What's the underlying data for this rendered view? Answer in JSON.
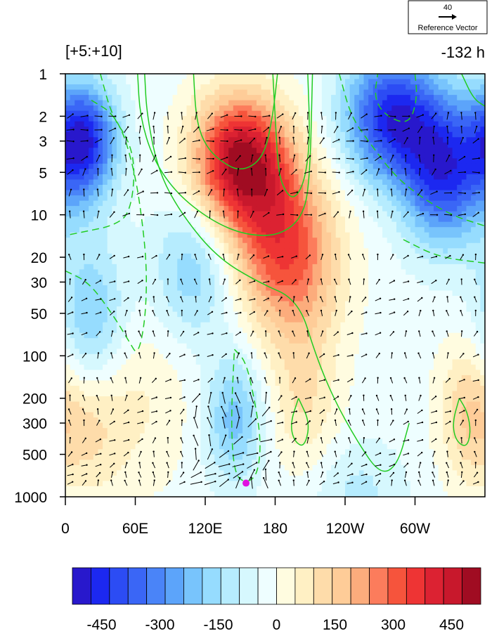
{
  "chart_data": {
    "type": "heatmap",
    "title_left": "[+5:+10]",
    "title_right": "-132 h",
    "xlabel": "",
    "ylabel": "",
    "x_ticks": [
      "0",
      "60E",
      "120E",
      "180",
      "120W",
      "60W"
    ],
    "x_tick_lon": [
      0,
      60,
      120,
      180,
      240,
      300
    ],
    "xlim": [
      0,
      360
    ],
    "y_ticks": [
      "1",
      "2",
      "3",
      "5",
      "10",
      "20",
      "30",
      "50",
      "100",
      "200",
      "300",
      "500",
      "1000"
    ],
    "y_tick_values": [
      1,
      2,
      3,
      5,
      10,
      20,
      30,
      50,
      100,
      200,
      300,
      500,
      1000
    ],
    "y_scale": "log",
    "y_reversed": true,
    "ylim": [
      1,
      1000
    ],
    "grid": false,
    "colorbar": {
      "orientation": "horizontal",
      "levels": [
        -525,
        -475,
        -425,
        -375,
        -325,
        -275,
        -225,
        -175,
        -125,
        -75,
        -25,
        25,
        75,
        125,
        175,
        225,
        275,
        325,
        375,
        425,
        475,
        525
      ],
      "colors": [
        "#2818cc",
        "#1c28f0",
        "#2c4cf4",
        "#3a66f6",
        "#4a84f8",
        "#5ca4fa",
        "#78c4fc",
        "#96dcfe",
        "#b6ecfe",
        "#d6f8fe",
        "#eefeff",
        "#fffce0",
        "#fff0c4",
        "#fedcaa",
        "#fecc98",
        "#fcac7c",
        "#fc7c5c",
        "#f6543c",
        "#ee3434",
        "#dc2232",
        "#c8182c",
        "#a00c22"
      ],
      "tick_labels": [
        "-450",
        "-300",
        "-150",
        "0",
        "150",
        "300",
        "450"
      ],
      "tick_values": [
        -450,
        -300,
        -150,
        0,
        150,
        300,
        450
      ]
    },
    "anomaly_field": {
      "description_free": true,
      "centers": [
        {
          "lon": 15,
          "p": 3,
          "value": -480,
          "slon": 28,
          "sp": 0.8
        },
        {
          "lon": 22,
          "p": 60,
          "value": -200,
          "slon": 30,
          "sp": 1.2
        },
        {
          "lon": 150,
          "p": 4,
          "value": 520,
          "slon": 40,
          "sp": 0.9
        },
        {
          "lon": 185,
          "p": 14,
          "value": 330,
          "slon": 45,
          "sp": 1.1
        },
        {
          "lon": 200,
          "p": 40,
          "value": 120,
          "slon": 40,
          "sp": 1.0
        },
        {
          "lon": 280,
          "p": 2,
          "value": -450,
          "slon": 40,
          "sp": 0.9
        },
        {
          "lon": 325,
          "p": 5,
          "value": -420,
          "slon": 35,
          "sp": 1.0
        },
        {
          "lon": 110,
          "p": 25,
          "value": -170,
          "slon": 35,
          "sp": 1.0
        },
        {
          "lon": 145,
          "p": 280,
          "value": -200,
          "slon": 25,
          "sp": 0.9
        },
        {
          "lon": 20,
          "p": 300,
          "value": 130,
          "slon": 30,
          "sp": 1.0
        },
        {
          "lon": 205,
          "p": 220,
          "value": 120,
          "slon": 30,
          "sp": 1.0
        },
        {
          "lon": 345,
          "p": 250,
          "value": 160,
          "slon": 25,
          "sp": 1.0
        },
        {
          "lon": 250,
          "p": 900,
          "value": -90,
          "slon": 40,
          "sp": 0.7
        },
        {
          "lon": 60,
          "p": 200,
          "value": 80,
          "slon": 50,
          "sp": 1.3
        }
      ]
    },
    "contours": {
      "solid_color": "#22cc22",
      "dashed_color": "#22cc22",
      "lines": [
        {
          "style": "solid",
          "pts": [
            [
              68,
              1
            ],
            [
              70,
              2
            ],
            [
              80,
              5
            ],
            [
              100,
              10
            ],
            [
              130,
              20
            ],
            [
              165,
              30
            ],
            [
              200,
              40
            ],
            [
              215,
              100
            ],
            [
              230,
              200
            ],
            [
              250,
              400
            ],
            [
              270,
              700
            ],
            [
              285,
              600
            ],
            [
              295,
              300
            ]
          ]
        },
        {
          "style": "solid",
          "pts": [
            [
              62,
              1
            ],
            [
              64,
              2
            ],
            [
              75,
              4
            ],
            [
              95,
              7
            ],
            [
              125,
              11
            ],
            [
              155,
              14
            ],
            [
              185,
              14
            ],
            [
              205,
              10
            ],
            [
              210,
              5
            ],
            [
              212,
              1
            ]
          ]
        },
        {
          "style": "solid",
          "pts": [
            [
              110,
              1
            ],
            [
              112,
              2
            ],
            [
              118,
              3
            ],
            [
              130,
              4
            ],
            [
              150,
              5
            ],
            [
              170,
              4
            ],
            [
              178,
              2
            ],
            [
              182,
              1
            ]
          ]
        },
        {
          "style": "solid",
          "pts": [
            [
              178,
              1
            ],
            [
              180,
              2
            ],
            [
              182,
              4
            ],
            [
              185,
              6
            ],
            [
              195,
              8
            ],
            [
              205,
              6
            ],
            [
              210,
              3
            ],
            [
              208,
              1
            ]
          ]
        },
        {
          "style": "solid",
          "pts": [
            [
              338,
              200
            ],
            [
              345,
              250
            ],
            [
              348,
              350
            ],
            [
              344,
              450
            ],
            [
              335,
              400
            ],
            [
              332,
              300
            ],
            [
              338,
              200
            ]
          ]
        },
        {
          "style": "solid",
          "pts": [
            [
              200,
              200
            ],
            [
              210,
              300
            ],
            [
              205,
              450
            ],
            [
              196,
              400
            ],
            [
              193,
              300
            ],
            [
              200,
              200
            ]
          ]
        },
        {
          "style": "dashed",
          "pts": [
            [
              0,
              25
            ],
            [
              20,
              30
            ],
            [
              40,
              50
            ],
            [
              55,
              80
            ],
            [
              62,
              100
            ],
            [
              68,
              60
            ],
            [
              70,
              30
            ],
            [
              68,
              15
            ],
            [
              60,
              5
            ],
            [
              45,
              2
            ],
            [
              20,
              1.5
            ]
          ]
        },
        {
          "style": "dashed",
          "pts": [
            [
              30,
              1
            ],
            [
              40,
              2
            ],
            [
              55,
              3
            ],
            [
              60,
              5
            ],
            [
              55,
              10
            ],
            [
              40,
              12
            ],
            [
              20,
              13
            ],
            [
              0,
              14
            ]
          ]
        },
        {
          "style": "dashed",
          "pts": [
            [
              145,
              90
            ],
            [
              155,
              110
            ],
            [
              162,
              200
            ],
            [
              168,
              400
            ],
            [
              165,
              700
            ],
            [
              155,
              800
            ],
            [
              145,
              700
            ],
            [
              142,
              300
            ],
            [
              145,
              90
            ]
          ]
        },
        {
          "style": "dashed",
          "pts": [
            [
              235,
              1
            ],
            [
              245,
              2
            ],
            [
              260,
              3
            ],
            [
              280,
              5
            ],
            [
              300,
              7
            ],
            [
              330,
              10
            ],
            [
              360,
              12
            ]
          ]
        },
        {
          "style": "dashed",
          "pts": [
            [
              300,
              1
            ],
            [
              302,
              1.5
            ],
            [
              295,
              2.3
            ],
            [
              275,
              2
            ],
            [
              265,
              1.5
            ],
            [
              268,
              1
            ]
          ]
        },
        {
          "style": "dashed",
          "pts": [
            [
              290,
              15
            ],
            [
              320,
              20
            ],
            [
              360,
              22
            ]
          ]
        },
        {
          "style": "solid",
          "pts": [
            [
              340,
              1
            ],
            [
              350,
              1.5
            ],
            [
              360,
              1.7
            ]
          ]
        }
      ]
    },
    "vectors": {
      "reference_label": "Reference Vector",
      "reference_magnitude": "40",
      "rows_p": [
        2,
        2.5,
        3,
        4,
        5,
        7,
        10,
        20,
        30,
        40,
        50,
        70,
        100,
        150,
        200,
        250,
        300,
        400,
        500,
        600,
        700,
        800
      ],
      "spacing_lon": 12
    },
    "marker": {
      "lon": 155,
      "p": 800,
      "color": "#e010e0"
    }
  }
}
